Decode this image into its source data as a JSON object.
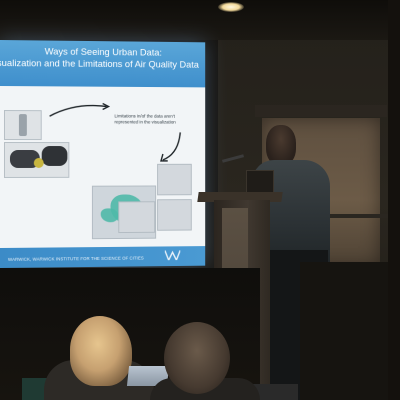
{
  "slide": {
    "title_line1": "Ways of Seeing Urban Data:",
    "title_line2": "Visualization and the Limitations of Air Quality Data",
    "annotation": "Limitations in/of the data aren't represented in the visualization",
    "footer": "WARWICK, WARWICK INSTITUTE FOR THE SCIENCE OF CITIES",
    "colors": {
      "header": "#3f8fcc",
      "map_accent": "#4fb9a8"
    }
  },
  "scene": {
    "type": "conference presentation photo",
    "icons": [
      "ceiling-light",
      "podium",
      "microphone",
      "speaker",
      "audience-member"
    ]
  }
}
